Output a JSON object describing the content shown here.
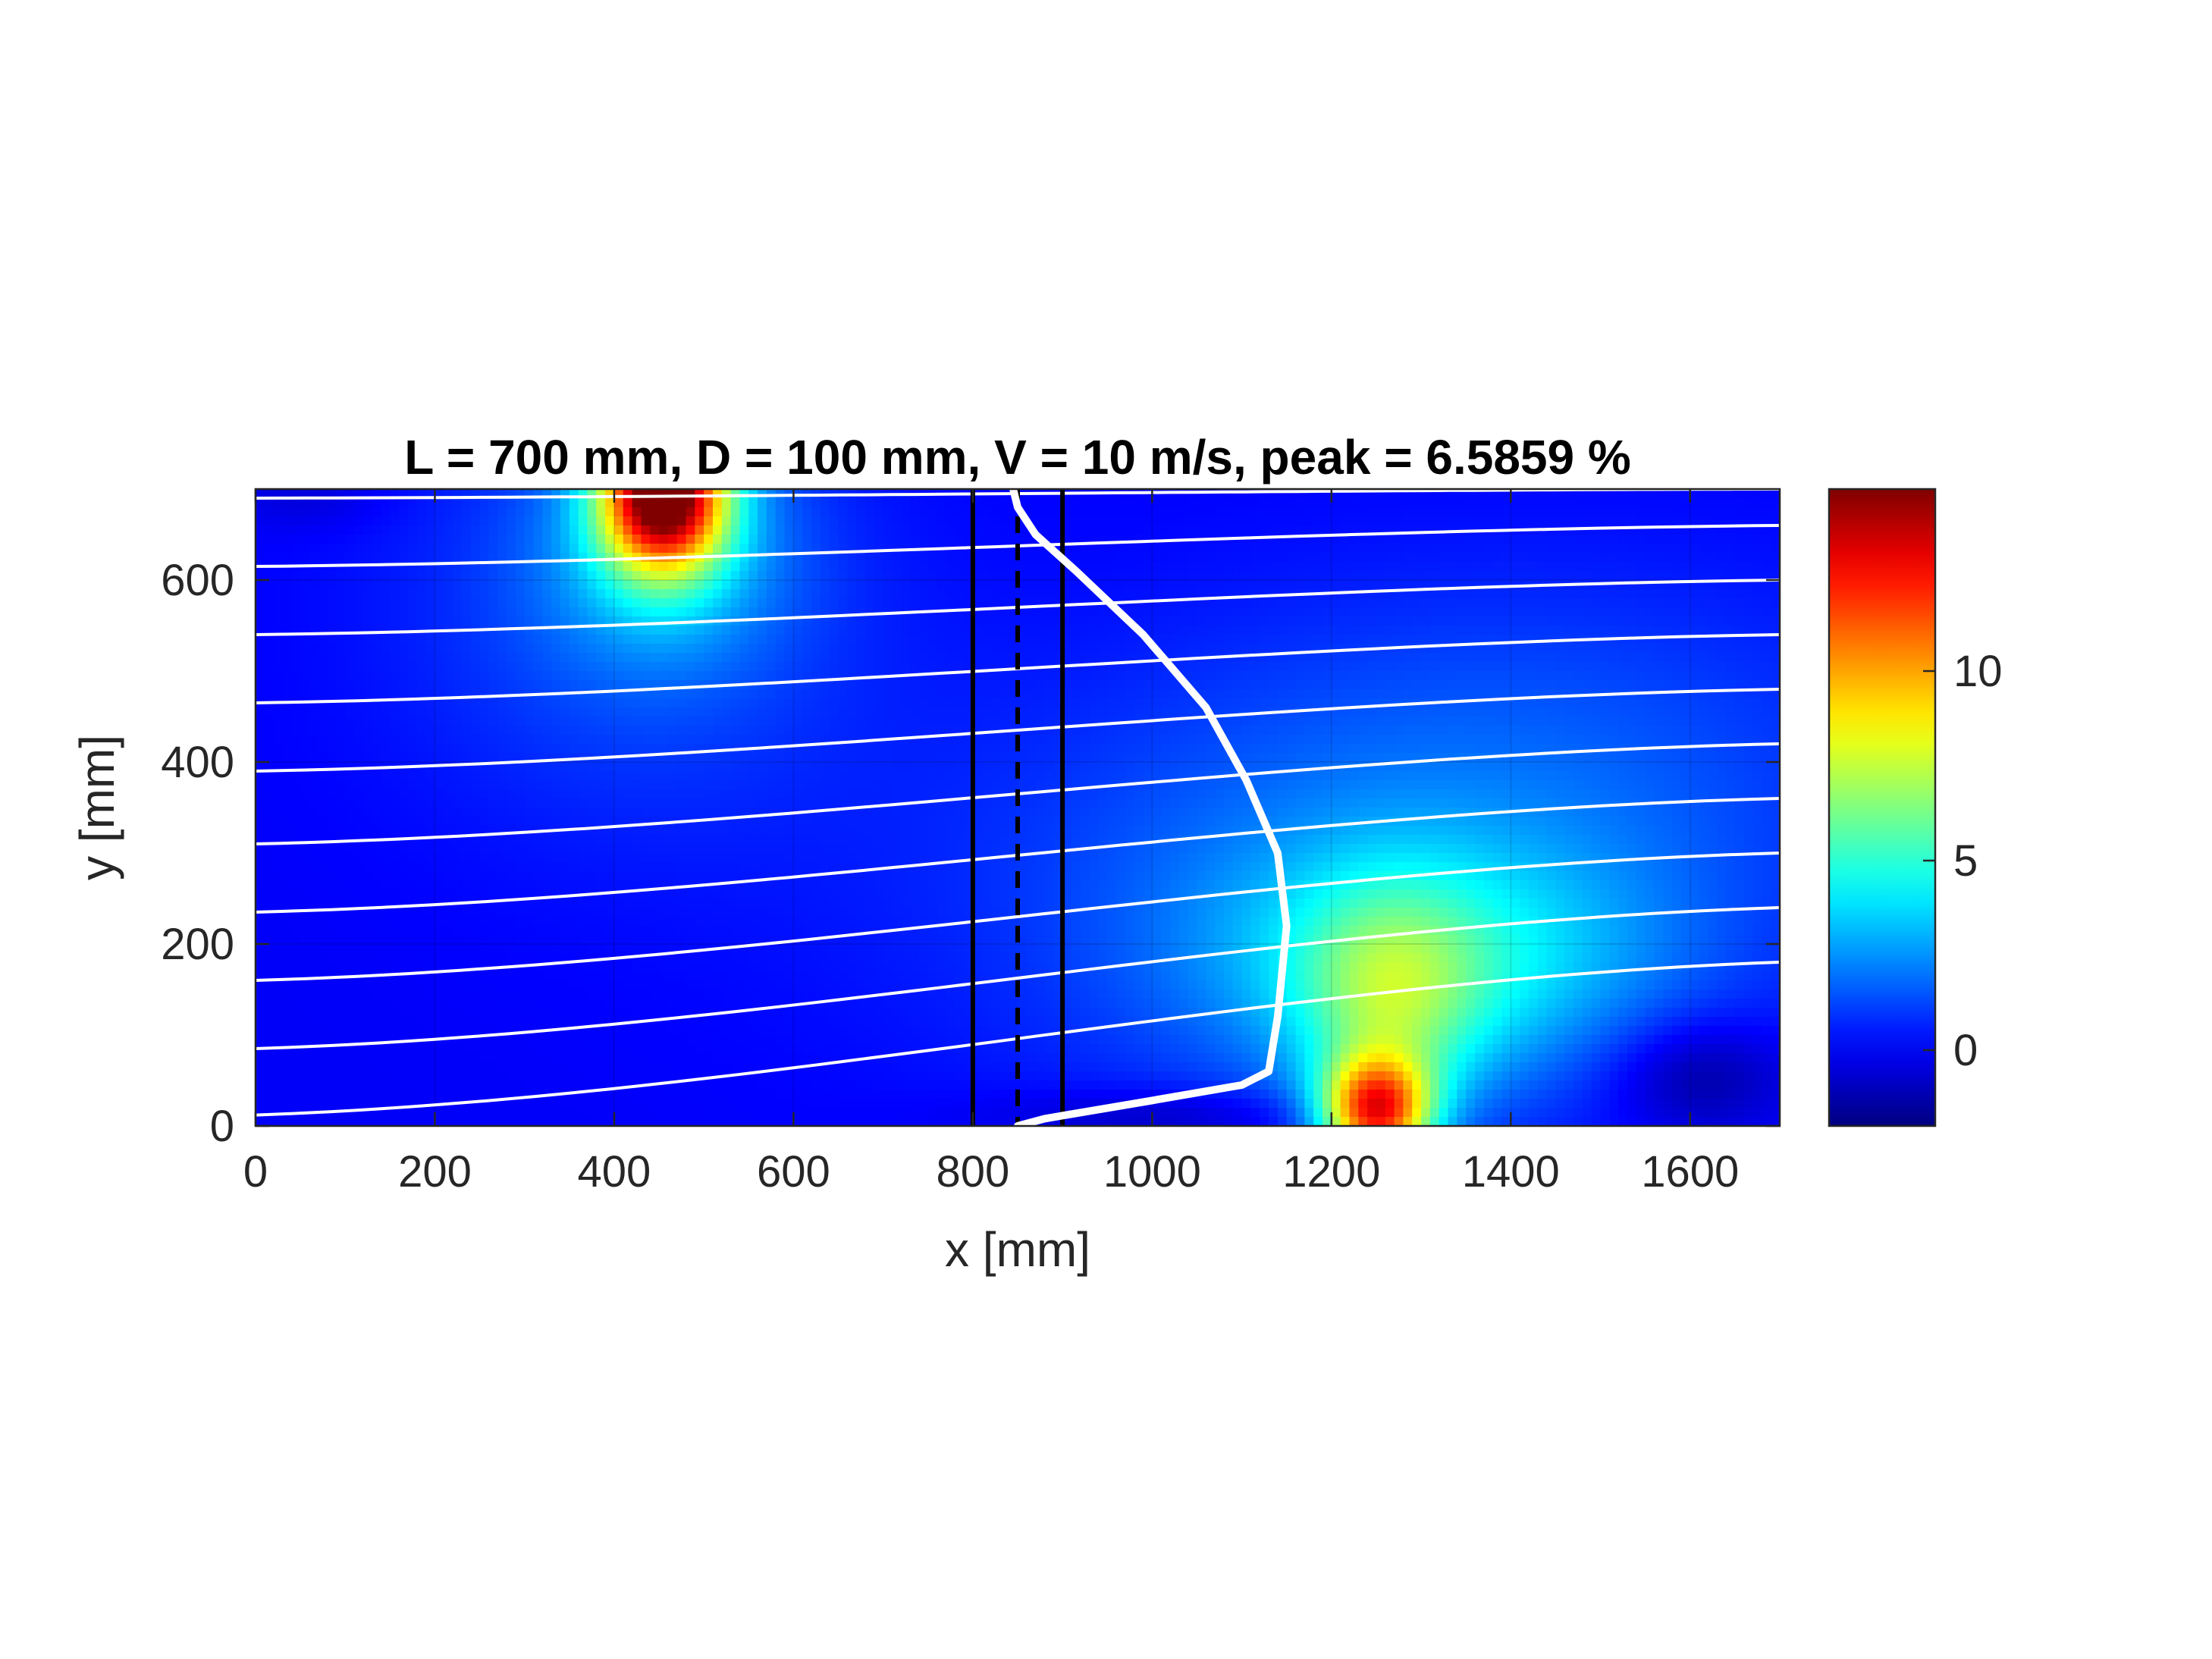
{
  "chart_data": {
    "type": "heatmap",
    "title": "L = 700 mm, D = 100 mm, V = 10 m/s, peak = 6.5859 %",
    "xlabel": "x [mm]",
    "ylabel": "y [mm]",
    "xlim": [
      0,
      1700
    ],
    "ylim": [
      0,
      700
    ],
    "x_ticks": [
      0,
      200,
      400,
      600,
      800,
      1000,
      1200,
      1400,
      1600
    ],
    "x_tick_labels": [
      "0",
      "200",
      "400",
      "600",
      "800",
      "1000",
      "1200",
      "1400",
      "1600"
    ],
    "y_ticks": [
      0,
      200,
      400,
      600
    ],
    "y_tick_labels": [
      "0",
      "200",
      "400",
      "600"
    ],
    "grid": true,
    "colormap": "jet",
    "colorbar": {
      "clim": [
        -2,
        14.8
      ],
      "ticks": [
        0,
        5,
        10
      ],
      "tick_labels": [
        "0",
        "5",
        "10"
      ]
    },
    "field_background": 0,
    "field_hotspots": [
      {
        "x": 455,
        "y": 700,
        "sx": 48,
        "sy": 60,
        "amp": 14.5
      },
      {
        "x": 455,
        "y": 640,
        "sx": 95,
        "sy": 90,
        "amp": 2.6
      },
      {
        "x": 420,
        "y": 560,
        "sx": 190,
        "sy": 170,
        "amp": 1.3
      },
      {
        "x": 1250,
        "y": 15,
        "sx": 42,
        "sy": 40,
        "amp": 10.5
      },
      {
        "x": 1265,
        "y": 120,
        "sx": 70,
        "sy": 90,
        "amp": 3.5
      },
      {
        "x": 1310,
        "y": 180,
        "sx": 170,
        "sy": 90,
        "amp": 3.2
      },
      {
        "x": 1230,
        "y": 250,
        "sx": 330,
        "sy": 170,
        "amp": 1.6
      },
      {
        "x": 1450,
        "y": 430,
        "sx": 300,
        "sy": 150,
        "amp": 0.9
      },
      {
        "x": 1610,
        "y": 55,
        "sx": 70,
        "sy": 45,
        "amp": -1.8
      },
      {
        "x": 1020,
        "y": 10,
        "sx": 140,
        "sy": 22,
        "amp": -1.2
      },
      {
        "x": 60,
        "y": 690,
        "sx": 60,
        "sy": 25,
        "amp": -0.6
      }
    ],
    "streamlines": [
      {
        "start_y": 12,
        "end_y": 180
      },
      {
        "start_y": 85,
        "end_y": 240
      },
      {
        "start_y": 160,
        "end_y": 300
      },
      {
        "start_y": 235,
        "end_y": 360
      },
      {
        "start_y": 310,
        "end_y": 420
      },
      {
        "start_y": 390,
        "end_y": 480
      },
      {
        "start_y": 465,
        "end_y": 540
      },
      {
        "start_y": 540,
        "end_y": 600
      },
      {
        "start_y": 615,
        "end_y": 660
      },
      {
        "start_y": 690,
        "end_y": 700
      }
    ],
    "vertical_lines": [
      {
        "x": 800,
        "style": "solid",
        "color": "#000000"
      },
      {
        "x": 850,
        "style": "dashed",
        "color": "#000000"
      },
      {
        "x": 900,
        "style": "solid",
        "color": "#000000"
      }
    ],
    "velocity_profile": {
      "color": "#ffffff",
      "points": [
        [
          850,
          0
        ],
        [
          880,
          8
        ],
        [
          1000,
          28
        ],
        [
          1100,
          45
        ],
        [
          1130,
          60
        ],
        [
          1140,
          120
        ],
        [
          1150,
          220
        ],
        [
          1140,
          300
        ],
        [
          1105,
          380
        ],
        [
          1060,
          460
        ],
        [
          990,
          540
        ],
        [
          915,
          610
        ],
        [
          870,
          650
        ],
        [
          850,
          680
        ],
        [
          845,
          700
        ]
      ]
    }
  }
}
